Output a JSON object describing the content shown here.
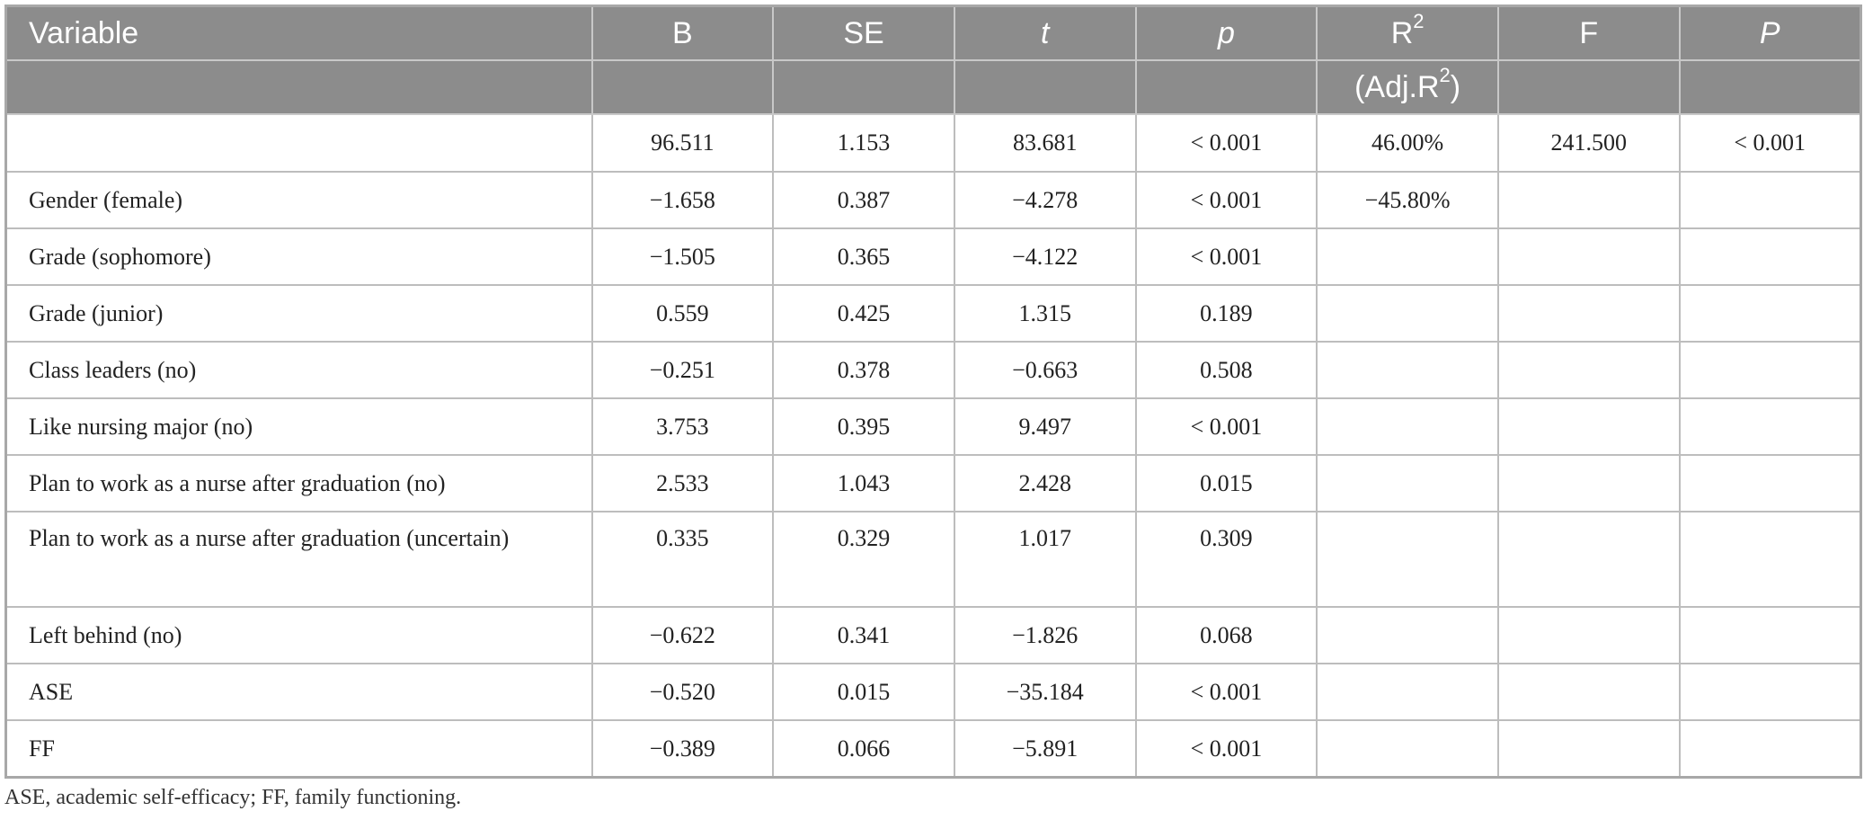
{
  "table": {
    "headers": [
      {
        "main": "Variable",
        "italic": false
      },
      {
        "main": "B",
        "italic": false
      },
      {
        "main": "SE",
        "italic": false
      },
      {
        "main": "t",
        "italic": true
      },
      {
        "main": "p",
        "italic": true
      },
      {
        "main": "R",
        "sup": "2",
        "sub_line": "(Adj.R",
        "sub_line_sup": "2",
        "sub_line_end": ")",
        "italic": false
      },
      {
        "main": "F",
        "italic": false
      },
      {
        "main": "P",
        "italic": true
      }
    ],
    "rows": [
      [
        "",
        "96.511",
        "1.153",
        "83.681",
        "< 0.001",
        "46.00%",
        "241.500",
        "< 0.001"
      ],
      [
        "Gender (female)",
        "−1.658",
        "0.387",
        "−4.278",
        "< 0.001",
        "−45.80%",
        "",
        ""
      ],
      [
        "Grade (sophomore)",
        "−1.505",
        "0.365",
        "−4.122",
        "< 0.001",
        "",
        "",
        ""
      ],
      [
        "Grade (junior)",
        "0.559",
        "0.425",
        "1.315",
        "0.189",
        "",
        "",
        ""
      ],
      [
        "Class leaders (no)",
        "−0.251",
        "0.378",
        "−0.663",
        "0.508",
        "",
        "",
        ""
      ],
      [
        "Like nursing major (no)",
        "3.753",
        "0.395",
        "9.497",
        "< 0.001",
        "",
        "",
        ""
      ],
      [
        "Plan to work as a nurse after graduation (no)",
        "2.533",
        "1.043",
        "2.428",
        "0.015",
        "",
        "",
        ""
      ],
      [
        "Plan to work as a nurse after graduation (uncertain)",
        "0.335",
        "0.329",
        "1.017",
        "0.309",
        "",
        "",
        ""
      ],
      [
        "Left behind (no)",
        "−0.622",
        "0.341",
        "−1.826",
        "0.068",
        "",
        "",
        ""
      ],
      [
        "ASE",
        "−0.520",
        "0.015",
        "−35.184",
        "< 0.001",
        "",
        "",
        ""
      ],
      [
        "FF",
        "−0.389",
        "0.066",
        "−5.891",
        "< 0.001",
        "",
        "",
        ""
      ]
    ]
  },
  "footnote": "ASE, academic self-efficacy; FF, family functioning.",
  "colors": {
    "header_bg": "#8c8c8c",
    "header_text": "#ffffff",
    "grid": "#bdbdbd"
  }
}
